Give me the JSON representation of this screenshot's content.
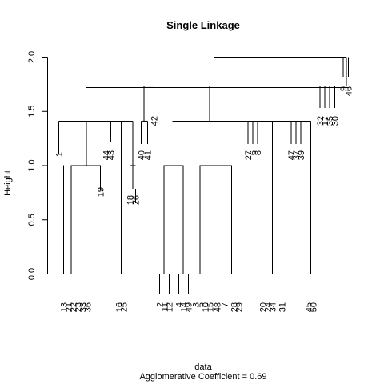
{
  "chart_data": {
    "type": "dendrogram",
    "title": "Single Linkage",
    "xlabel": "data",
    "ylabel": "Height",
    "subtitle": "Agglomerative Coefficient =  0.69",
    "ylim": [
      0,
      2.0
    ],
    "y_ticks": [
      0.0,
      0.5,
      1.0,
      1.5,
      2.0
    ],
    "y_tick_labels": [
      "0.0",
      "0.5",
      "1.0",
      "1.5",
      "2.0"
    ],
    "leaves": [
      "1",
      "13",
      "21",
      "22",
      "23",
      "33",
      "36",
      "19",
      "44",
      "43",
      "16",
      "25",
      "18",
      "26",
      "40",
      "41",
      "42",
      "2",
      "11",
      "12",
      "4",
      "14",
      "49",
      "3",
      "5",
      "10",
      "15",
      "48",
      "7",
      "28",
      "29",
      "27",
      "6",
      "8",
      "20",
      "24",
      "34",
      "31",
      "47",
      "37",
      "39",
      "45",
      "50",
      "32",
      "17",
      "35",
      "30",
      "9",
      "46"
    ],
    "merges": [
      {
        "x0": 79.5,
        "x1": 116.5,
        "h": 0
      },
      {
        "x0": 148.5,
        "x1": 154.5,
        "h": 0
      },
      {
        "x0": 199.5,
        "x1": 211.5,
        "h": 0
      },
      {
        "x0": 223.5,
        "x1": 235.5,
        "h": 0
      },
      {
        "x0": 244.5,
        "x1": 271.5,
        "h": 0
      },
      {
        "x0": 280.5,
        "x1": 298.5,
        "h": 0
      },
      {
        "x0": 328.5,
        "x1": 352.5,
        "h": 0
      },
      {
        "x0": 385.5,
        "x1": 391.5,
        "h": 0
      },
      {
        "x0": 89,
        "x1": 125.5,
        "h": 1.0
      },
      {
        "x0": 162.5,
        "x1": 169.5,
        "h": 1.0
      },
      {
        "x0": 205,
        "x1": 229,
        "h": 1.0
      },
      {
        "x0": 250,
        "x1": 289.5,
        "h": 1.0
      },
      {
        "x0": 73.5,
        "x1": 166,
        "h": 1.41
      },
      {
        "x0": 176.5,
        "x1": 184.5,
        "h": 1.41
      },
      {
        "x0": 215.5,
        "x1": 388.5,
        "h": 1.41
      },
      {
        "x0": 108,
        "x1": 192.5,
        "h": 1.72
      },
      {
        "x0": 180,
        "x1": 192.5,
        "h": 1.72
      },
      {
        "x0": 262,
        "x1": 418.5,
        "h": 1.72
      },
      {
        "x0": 107.5,
        "x1": 435.5,
        "h": 1.72
      },
      {
        "x0": 267.5,
        "x1": 433,
        "h": 2.0
      }
    ]
  }
}
